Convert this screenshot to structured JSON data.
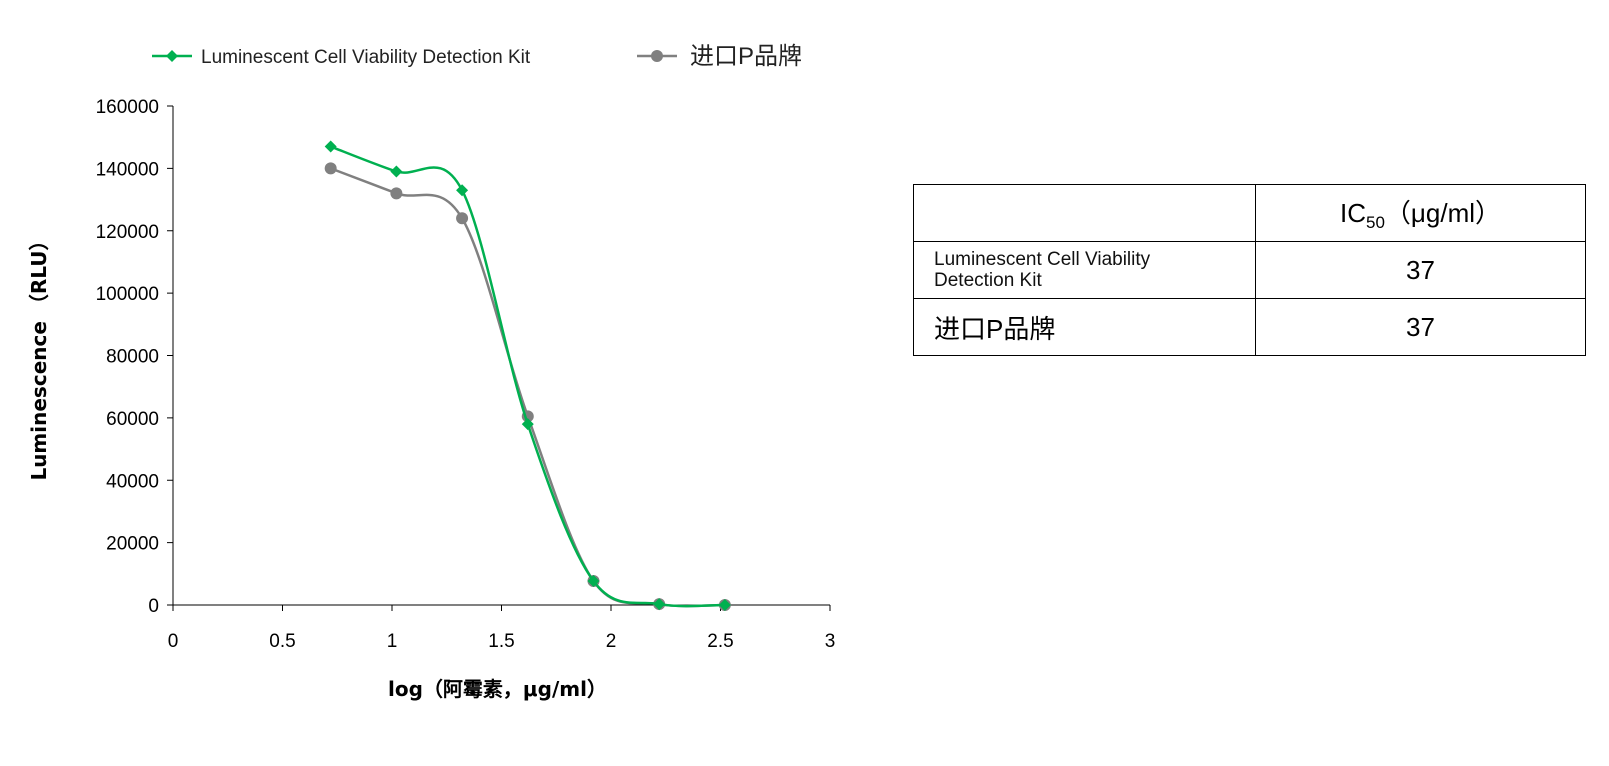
{
  "chart_data": {
    "type": "line",
    "xlabel": "log（阿霉素，μg/ml）",
    "ylabel": "Luminescence （RLU）",
    "xlim": [
      0,
      3
    ],
    "ylim": [
      0,
      160000
    ],
    "xticks": [
      "0",
      "0.5",
      "1",
      "1.5",
      "2",
      "2.5",
      "3"
    ],
    "yticks": [
      "0",
      "20000",
      "40000",
      "60000",
      "80000",
      "100000",
      "120000",
      "140000",
      "160000"
    ],
    "grid": false,
    "legend": "top",
    "x": [
      0.72,
      1.02,
      1.32,
      1.62,
      1.92,
      2.22,
      2.52
    ],
    "series": [
      {
        "name": "Luminescent Cell Viability Detection Kit",
        "color": "#00b050",
        "marker": "diamond",
        "values": [
          147000,
          139000,
          133000,
          58000,
          7700,
          300,
          0
        ]
      },
      {
        "name": "进口P品牌",
        "color": "#808080",
        "marker": "circle",
        "values": [
          140000,
          132000,
          124000,
          60500,
          7700,
          300,
          0
        ]
      }
    ]
  },
  "table": {
    "header": [
      "",
      "IC50（μg/ml）"
    ],
    "header_main": "IC",
    "header_sub": "50",
    "header_unit": "（μg/ml）",
    "rows": [
      {
        "name": "Luminescent Cell Viability Detection Kit",
        "value": "37"
      },
      {
        "name": "进口P品牌",
        "value": "37"
      }
    ]
  }
}
